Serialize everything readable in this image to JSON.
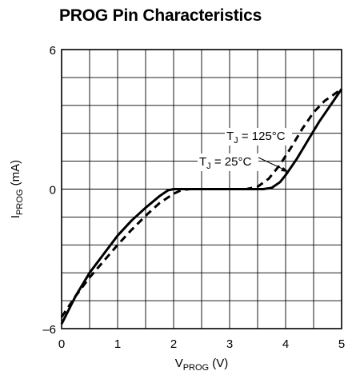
{
  "chart_data": {
    "type": "line",
    "title": "PROG Pin Characteristics",
    "xlabel": {
      "main": "V",
      "sub": "PROG",
      "unit": " (V)"
    },
    "ylabel": {
      "main": "I",
      "sub": "PROG",
      "unit": " (mA)"
    },
    "xlim": [
      0,
      5
    ],
    "ylim": [
      -6,
      6
    ],
    "x_ticks": [
      "0",
      "1",
      "2",
      "3",
      "4",
      "5"
    ],
    "y_ticks": [
      {
        "value": 6,
        "label": "6"
      },
      {
        "value": 0,
        "label": "0"
      },
      {
        "value": -6,
        "label": "–6"
      }
    ],
    "grid": true,
    "series": [
      {
        "name": "T_J = 25°C",
        "style": "solid",
        "color": "#000000",
        "points": [
          [
            0,
            -5.8
          ],
          [
            0.25,
            -4.6
          ],
          [
            0.5,
            -3.6
          ],
          [
            0.75,
            -2.8
          ],
          [
            1.0,
            -2.0
          ],
          [
            1.25,
            -1.35
          ],
          [
            1.5,
            -0.8
          ],
          [
            1.75,
            -0.3
          ],
          [
            1.9,
            -0.05
          ],
          [
            2.0,
            0.0
          ],
          [
            3.0,
            0.0
          ],
          [
            3.6,
            0.0
          ],
          [
            3.75,
            0.05
          ],
          [
            3.9,
            0.3
          ],
          [
            4.0,
            0.6
          ],
          [
            4.2,
            1.3
          ],
          [
            4.4,
            2.1
          ],
          [
            4.6,
            2.9
          ],
          [
            4.8,
            3.6
          ],
          [
            5.0,
            4.3
          ]
        ]
      },
      {
        "name": "T_J = 125°C",
        "style": "dashed",
        "color": "#000000",
        "points": [
          [
            0,
            -5.5
          ],
          [
            0.25,
            -4.6
          ],
          [
            0.5,
            -3.8
          ],
          [
            0.75,
            -3.1
          ],
          [
            1.0,
            -2.4
          ],
          [
            1.25,
            -1.75
          ],
          [
            1.5,
            -1.15
          ],
          [
            1.75,
            -0.6
          ],
          [
            2.0,
            -0.2
          ],
          [
            2.15,
            -0.03
          ],
          [
            2.3,
            0.0
          ],
          [
            3.3,
            0.0
          ],
          [
            3.5,
            0.1
          ],
          [
            3.7,
            0.45
          ],
          [
            3.9,
            1.05
          ],
          [
            4.1,
            1.8
          ],
          [
            4.3,
            2.6
          ],
          [
            4.5,
            3.3
          ],
          [
            4.7,
            3.8
          ],
          [
            5.0,
            4.3
          ]
        ]
      }
    ],
    "annotations": [
      {
        "main": "T",
        "sub": "J",
        "rest": " = 125°C",
        "series": "T_J = 125°C"
      },
      {
        "main": "T",
        "sub": "J",
        "rest": " = 25°C",
        "series": "T_J = 25°C"
      }
    ]
  }
}
